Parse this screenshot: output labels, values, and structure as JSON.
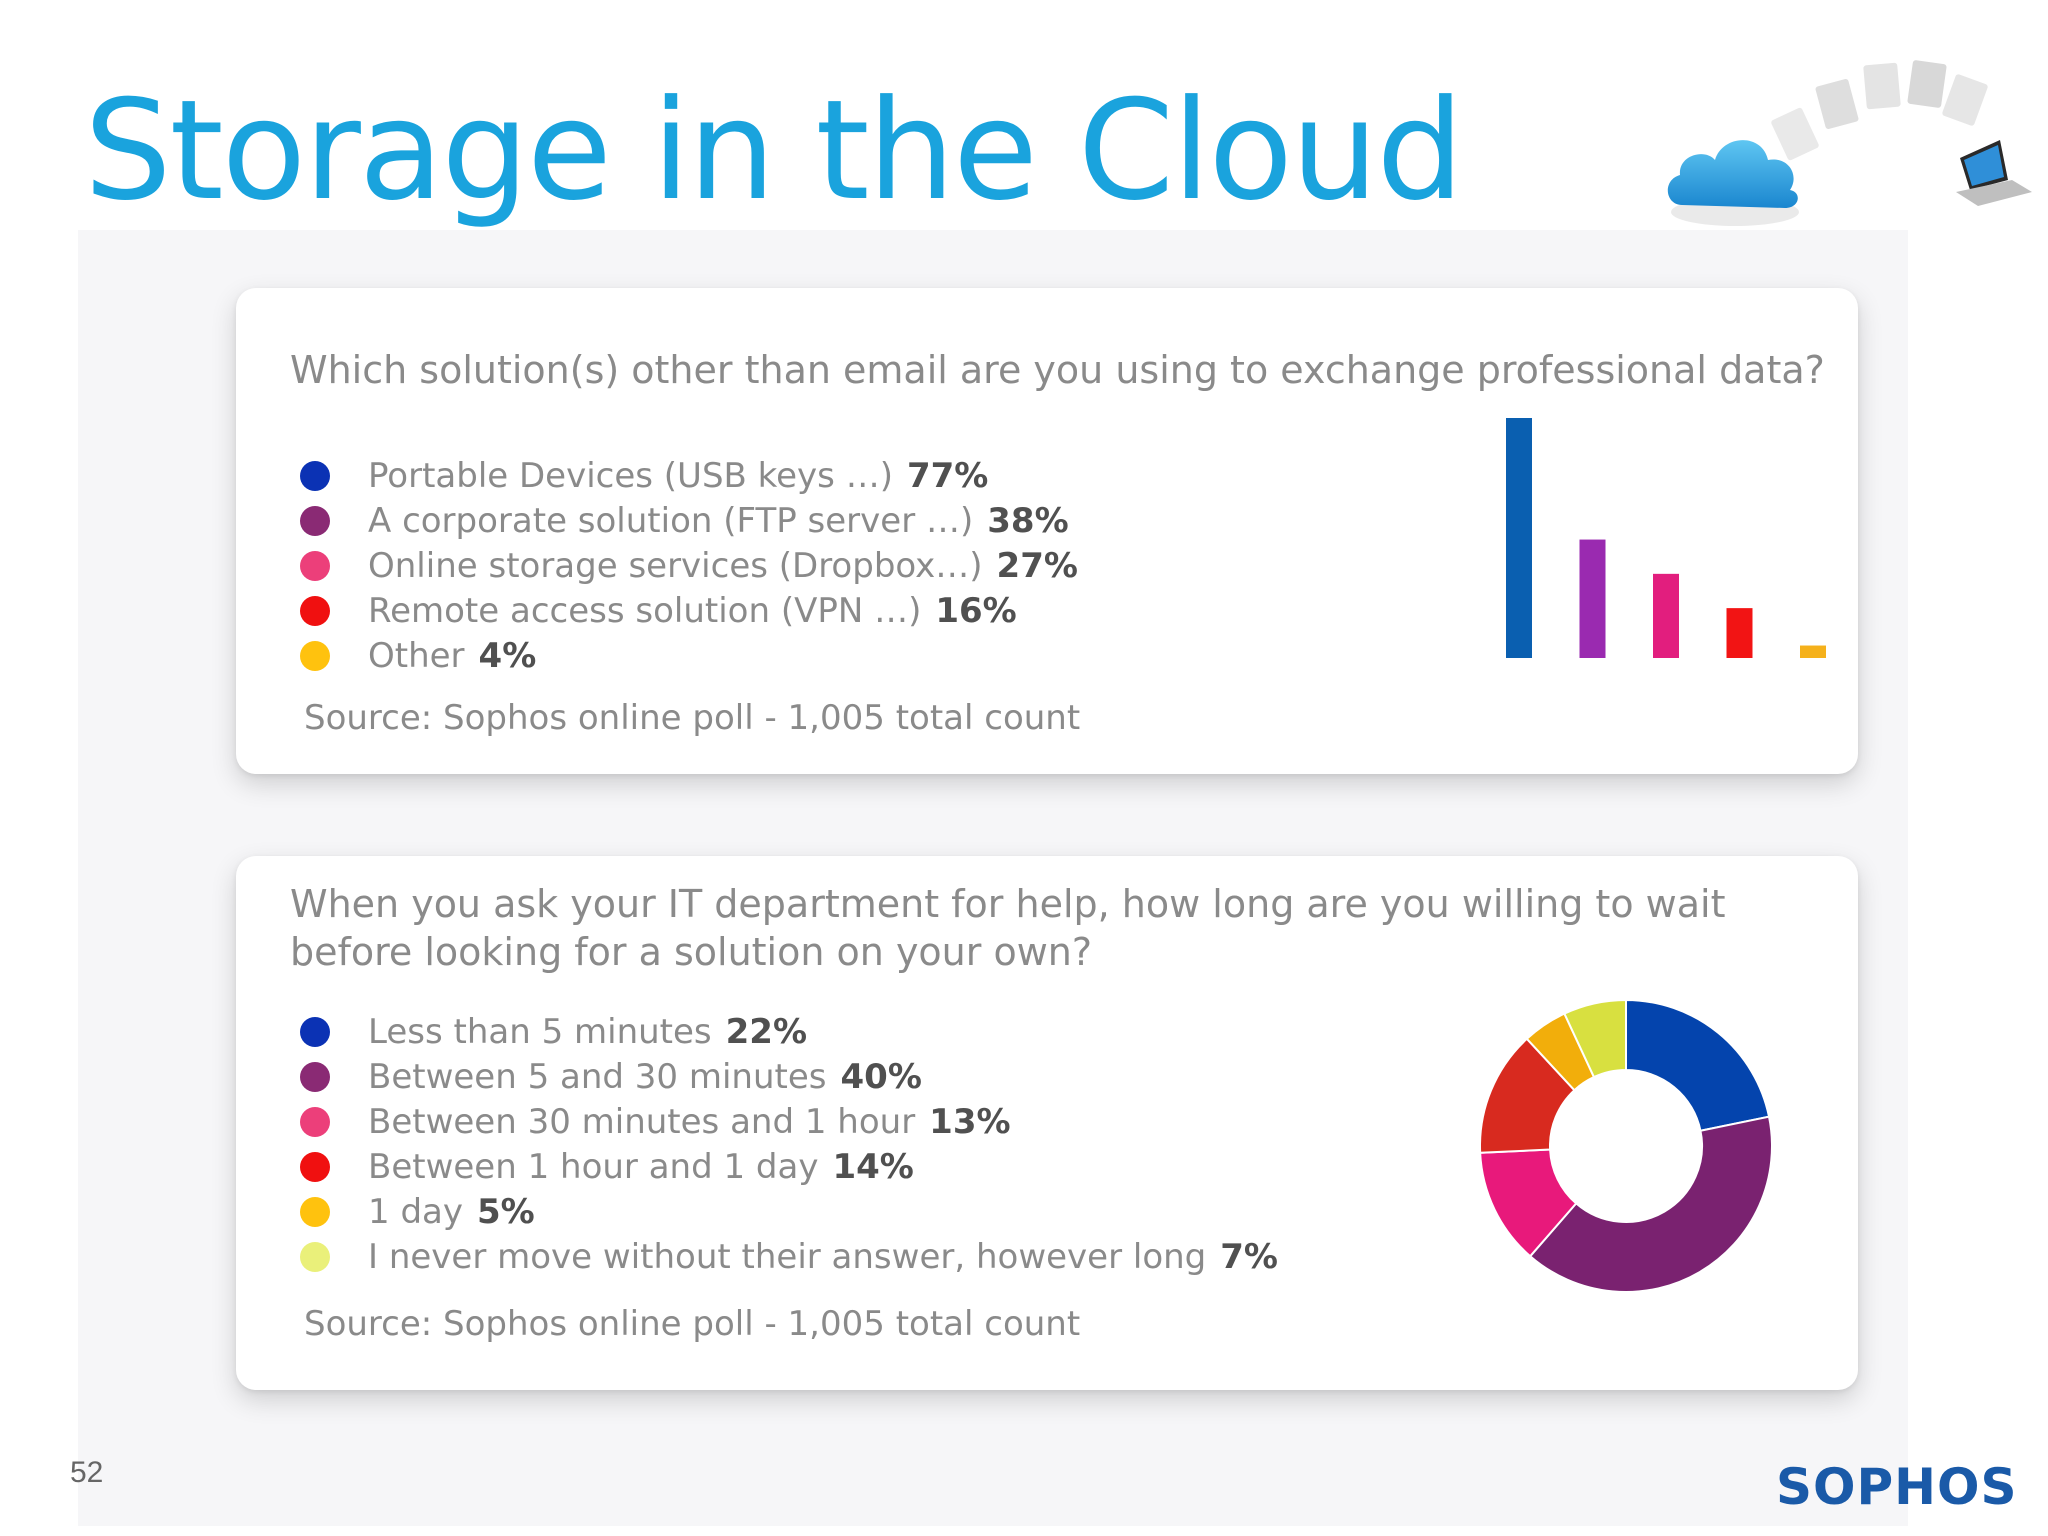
{
  "slide": {
    "title": "Storage in the Cloud",
    "page_number": "52",
    "logo_text": "SOPHOS",
    "title_color": "#1aa3dd",
    "logo_color": "#1a5aa8"
  },
  "questions": [
    {
      "text": "Which solution(s) other than email are you using to exchange professional data?",
      "items": [
        {
          "label": "Portable Devices (USB keys …)",
          "value": "77%",
          "dot_color": "#0b32b4"
        },
        {
          "label": "A corporate solution (FTP server …)",
          "value": "38%",
          "dot_color": "#8a2a74"
        },
        {
          "label": "Online storage services (Dropbox…)",
          "value": "27%",
          "dot_color": "#ec3f7a"
        },
        {
          "label": "Remote access solution (VPN …)",
          "value": "16%",
          "dot_color": "#f01010"
        },
        {
          "label": "Other",
          "value": "4%",
          "dot_color": "#ffc20e"
        }
      ],
      "source": "Source: Sophos online poll - 1,005 total count"
    },
    {
      "text": "When you ask your IT department for help, how long are you willing to wait before looking for a solution on your own?",
      "items": [
        {
          "label": "Less than 5 minutes",
          "value": "22%",
          "dot_color": "#0b32b4"
        },
        {
          "label": "Between 5 and 30 minutes",
          "value": "40%",
          "dot_color": "#8a2a74"
        },
        {
          "label": "Between 30 minutes and 1 hour",
          "value": "13%",
          "dot_color": "#ec3f7a"
        },
        {
          "label": "Between 1 hour and 1 day",
          "value": "14%",
          "dot_color": "#f01010"
        },
        {
          "label": "1 day",
          "value": "5%",
          "dot_color": "#ffc20e"
        },
        {
          "label": "I never move without their answer, however long",
          "value": "7%",
          "dot_color": "#eaf07a"
        }
      ],
      "source": "Source: Sophos online poll - 1,005 total count"
    }
  ],
  "chart_data": [
    {
      "type": "bar",
      "categories": [
        "Portable Devices (USB keys …)",
        "A corporate solution (FTP server …)",
        "Online storage services (Dropbox…)",
        "Remote access solution (VPN …)",
        "Other"
      ],
      "values": [
        77,
        38,
        27,
        16,
        4
      ],
      "colors": [
        "#0a5fb0",
        "#9a2ab0",
        "#e21e7e",
        "#f21414",
        "#f5b11b"
      ],
      "ylim": [
        0,
        77
      ],
      "grid": false
    },
    {
      "type": "pie",
      "donut": true,
      "categories": [
        "Less than 5 minutes",
        "Between 5 and 30 minutes",
        "Between 30 minutes and 1 hour",
        "Between 1 hour and 1 day",
        "1 day",
        "I never move without their answer, however long"
      ],
      "values": [
        22,
        40,
        13,
        14,
        5,
        7
      ],
      "colors": [
        "#0444ad",
        "#7a2270",
        "#e8197b",
        "#d82a1f",
        "#f2ae0b",
        "#d8e040"
      ]
    }
  ]
}
